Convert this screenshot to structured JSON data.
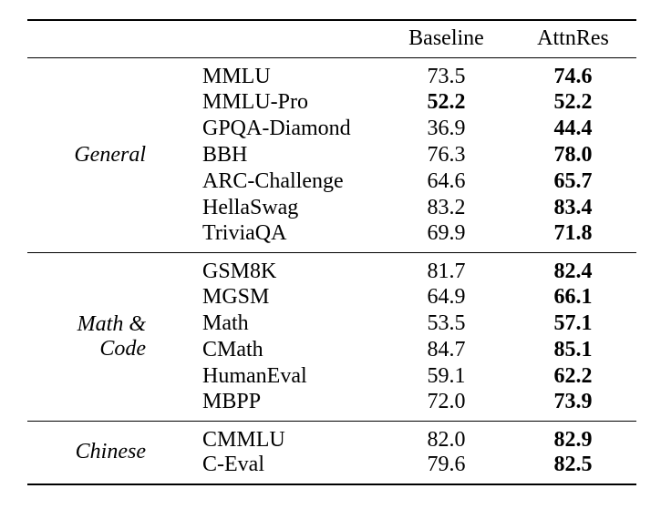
{
  "colors": {
    "background": "#ffffff",
    "text": "#000000",
    "rule": "#000000"
  },
  "table": {
    "header": {
      "baseline": "Baseline",
      "attnres": "AttnRes"
    },
    "sections": [
      {
        "label": "General",
        "rows": [
          {
            "name": "MMLU",
            "baseline": "73.5",
            "attnres": "74.6",
            "bold": "attnres"
          },
          {
            "name": "MMLU-Pro",
            "baseline": "52.2",
            "attnres": "52.2",
            "bold": "both"
          },
          {
            "name": "GPQA-Diamond",
            "baseline": "36.9",
            "attnres": "44.4",
            "bold": "attnres"
          },
          {
            "name": "BBH",
            "baseline": "76.3",
            "attnres": "78.0",
            "bold": "attnres"
          },
          {
            "name": "ARC-Challenge",
            "baseline": "64.6",
            "attnres": "65.7",
            "bold": "attnres"
          },
          {
            "name": "HellaSwag",
            "baseline": "83.2",
            "attnres": "83.4",
            "bold": "attnres"
          },
          {
            "name": "TriviaQA",
            "baseline": "69.9",
            "attnres": "71.8",
            "bold": "attnres"
          }
        ]
      },
      {
        "label": "Math & Code",
        "rows": [
          {
            "name": "GSM8K",
            "baseline": "81.7",
            "attnres": "82.4",
            "bold": "attnres"
          },
          {
            "name": "MGSM",
            "baseline": "64.9",
            "attnres": "66.1",
            "bold": "attnres"
          },
          {
            "name": "Math",
            "baseline": "53.5",
            "attnres": "57.1",
            "bold": "attnres"
          },
          {
            "name": "CMath",
            "baseline": "84.7",
            "attnres": "85.1",
            "bold": "attnres"
          },
          {
            "name": "HumanEval",
            "baseline": "59.1",
            "attnres": "62.2",
            "bold": "attnres"
          },
          {
            "name": "MBPP",
            "baseline": "72.0",
            "attnres": "73.9",
            "bold": "attnres"
          }
        ]
      },
      {
        "label": "Chinese",
        "rows": [
          {
            "name": "CMMLU",
            "baseline": "82.0",
            "attnres": "82.9",
            "bold": "attnres"
          },
          {
            "name": "C-Eval",
            "baseline": "79.6",
            "attnres": "82.5",
            "bold": "attnres"
          }
        ]
      }
    ]
  }
}
